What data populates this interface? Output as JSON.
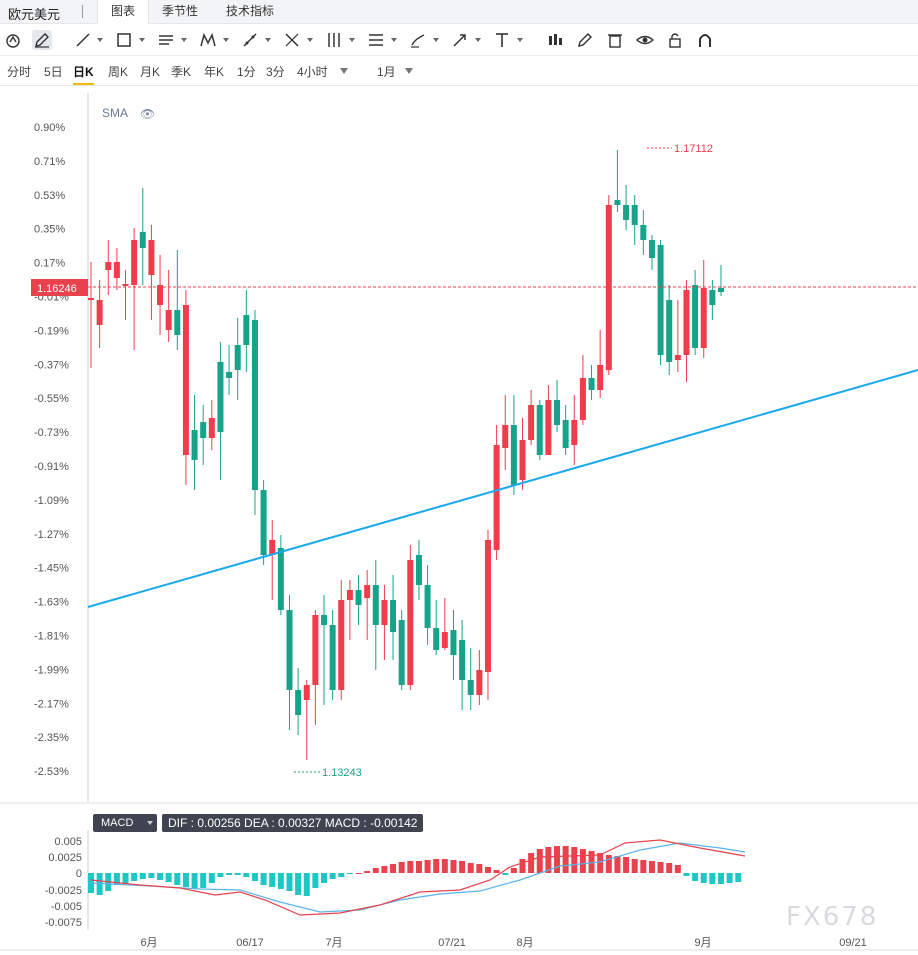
{
  "header": {
    "symbol": "欧元美元",
    "tabs": [
      {
        "label": "图表",
        "active": true
      },
      {
        "label": "季节性",
        "active": false
      },
      {
        "label": "技术指标",
        "active": false
      }
    ]
  },
  "toolbar": {
    "icons": [
      "cursor-circle-icon",
      "pencil-icon",
      "trend-line-icon",
      "rectangle-icon",
      "parallel-lines-icon",
      "pattern-icon",
      "fib-icon",
      "gann-icon",
      "range-icon",
      "levels-icon",
      "brush-icon",
      "arrow-icon",
      "text-icon",
      "candles-icon",
      "edit-icon",
      "trash-icon",
      "eye-icon",
      "unlock-icon",
      "magnet-icon"
    ]
  },
  "periods": {
    "items": [
      "分时",
      "5日",
      "日K",
      "周K",
      "月K",
      "季K",
      "年K",
      "1分",
      "3分",
      "4小时"
    ],
    "active": "日K",
    "range_label": "1月"
  },
  "chart": {
    "indicator": "SMA",
    "current_price_label": "1.16246",
    "high_label": "1.17112",
    "low_label": "1.13243",
    "y_axis_labels": [
      "0.90%",
      "0.71%",
      "0.53%",
      "0.35%",
      "0.17%",
      "-0.01%",
      "-0.19%",
      "-0.37%",
      "-0.55%",
      "-0.73%",
      "-0.91%",
      "-1.09%",
      "-1.27%",
      "-1.45%",
      "-1.63%",
      "-1.81%",
      "-1.99%",
      "-2.17%",
      "-2.35%",
      "-2.53%"
    ],
    "x_axis_labels": [
      "6月",
      "06/17",
      "7月",
      "07/21",
      "8月",
      "9月",
      "09/21"
    ],
    "colors": {
      "up": "#f03d4c",
      "down": "#16a38a",
      "trendline": "#1aa9ee",
      "price_line": "#e8424d",
      "macd_dif": "#e8424d",
      "macd_dea": "#5ab4e8"
    }
  },
  "macd": {
    "button_label": "MACD",
    "info": "DIF : 0.00256   DEA : 0.00327   MACD : -0.00142",
    "y_axis_labels": [
      "0.005",
      "0.0025",
      "0",
      "-0.0025",
      "-0.005",
      "-0.0075"
    ]
  },
  "watermark": "FX678"
}
